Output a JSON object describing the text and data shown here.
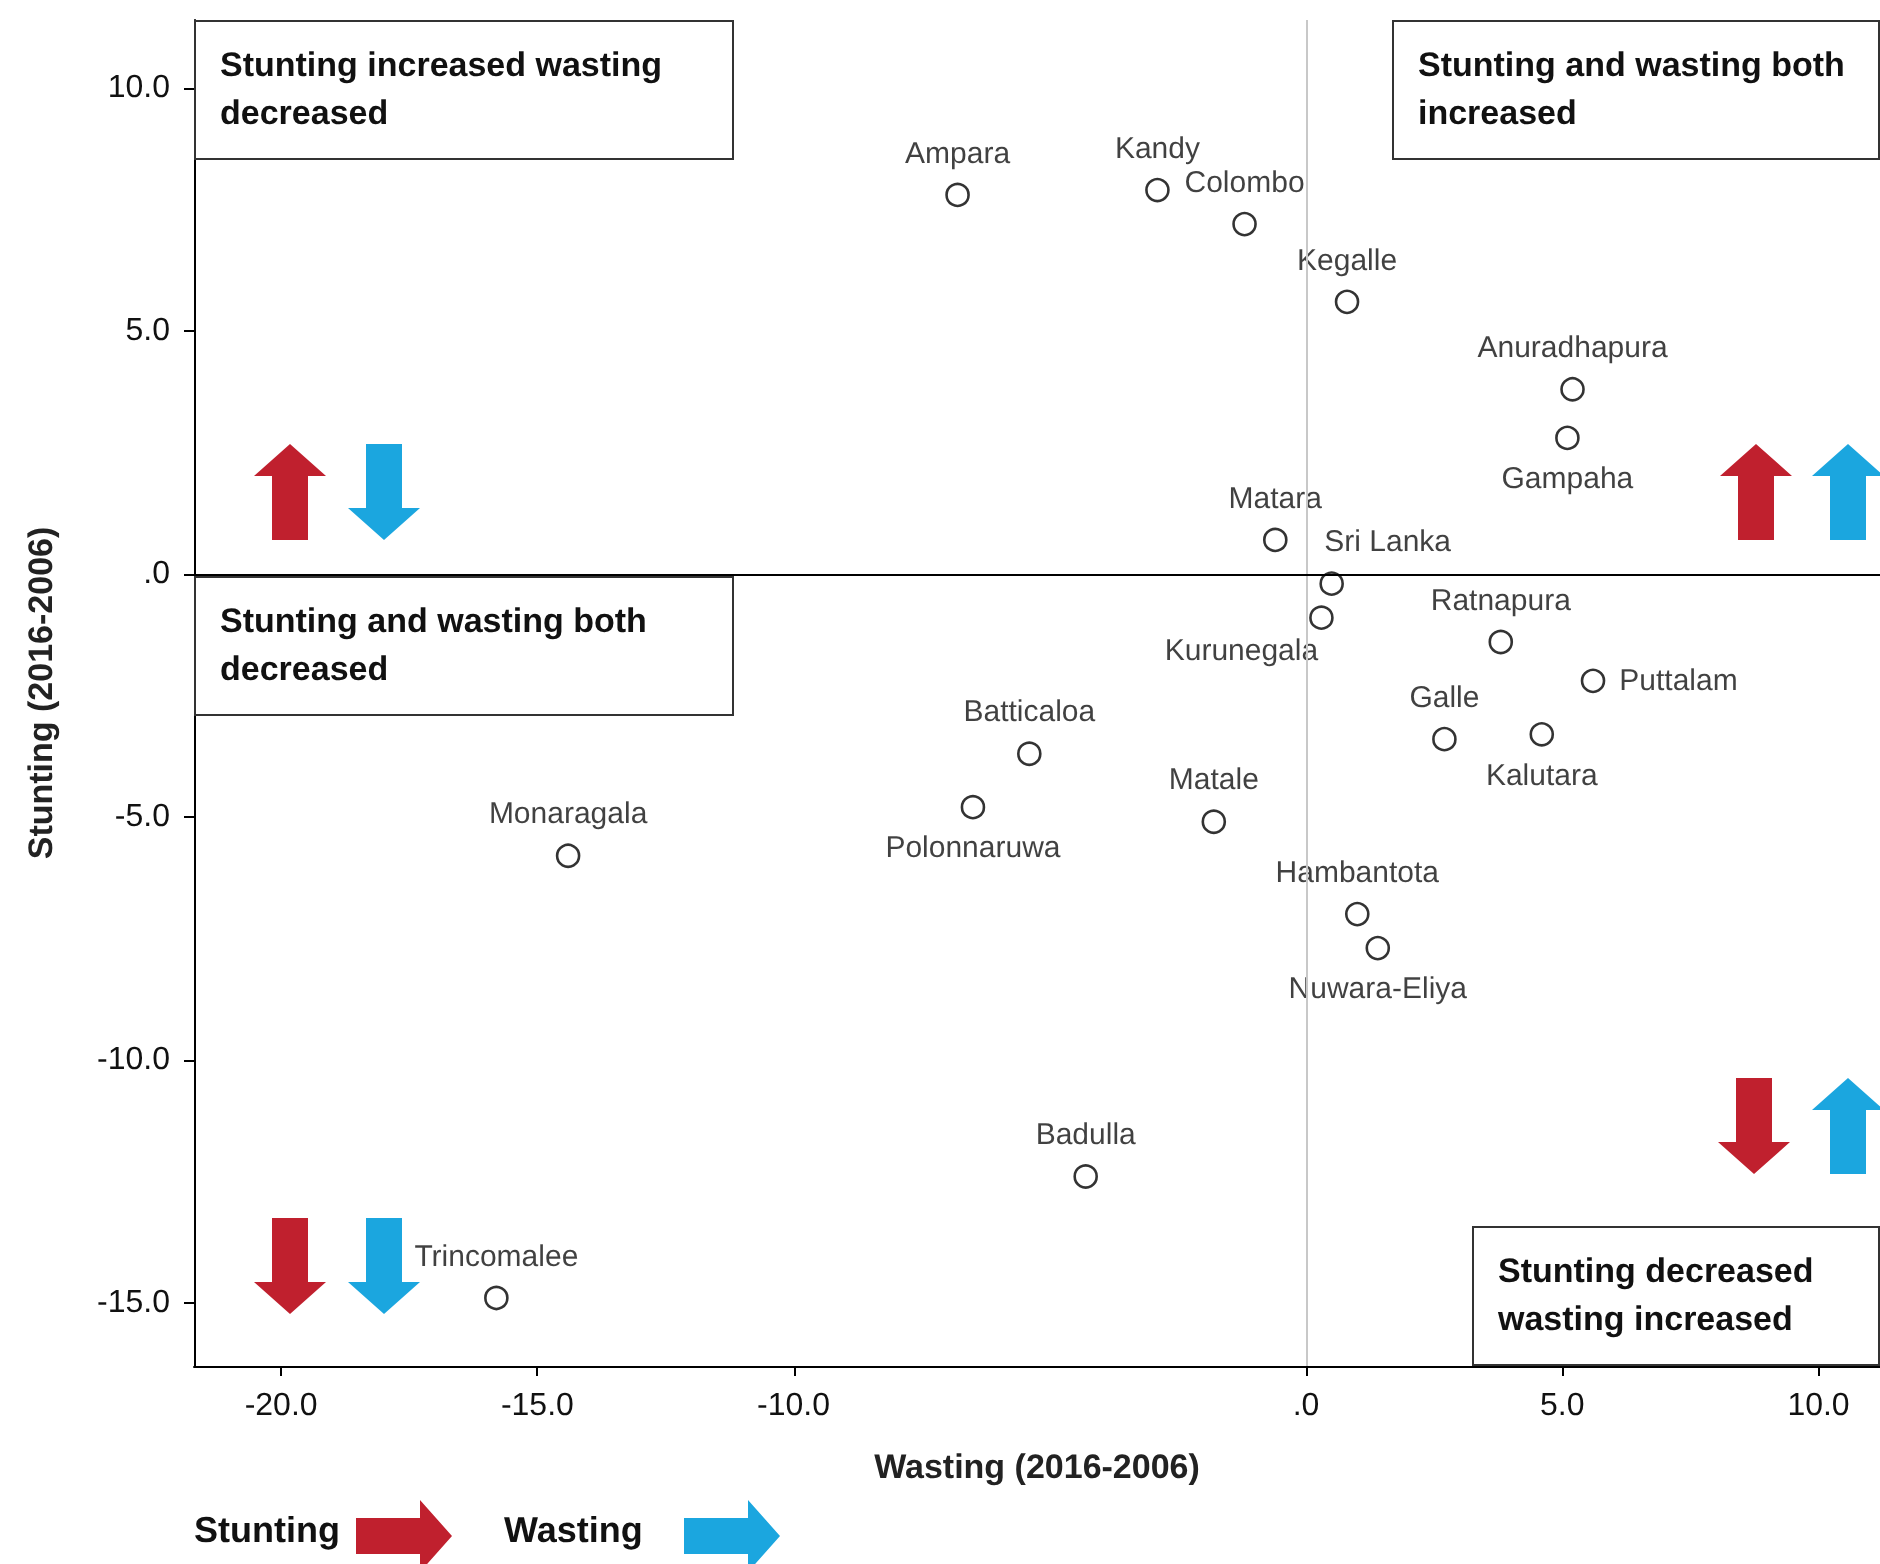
{
  "chart_data": {
    "type": "scatter",
    "xlabel": "Wasting (2016-2006)",
    "ylabel": "Stunting (2016-2006)",
    "xlim": [
      -21.7,
      11.2
    ],
    "ylim": [
      -16.3,
      11.4
    ],
    "xticks": [
      {
        "value": -20,
        "label": "-20.0"
      },
      {
        "value": -15,
        "label": "-15.0"
      },
      {
        "value": -10,
        "label": "-10.0"
      },
      {
        "value": 0,
        "label": ".0"
      },
      {
        "value": 5,
        "label": "5.0"
      },
      {
        "value": 10,
        "label": "10.0"
      }
    ],
    "yticks": [
      {
        "value": -15,
        "label": "-15.0"
      },
      {
        "value": -10,
        "label": "-10.0"
      },
      {
        "value": -5,
        "label": "-5.0"
      },
      {
        "value": 0,
        "label": ".0"
      },
      {
        "value": 5,
        "label": "5.0"
      },
      {
        "value": 10,
        "label": "10.0"
      }
    ],
    "grid": false,
    "legend": false,
    "marker": "circle",
    "ref_lines": [
      {
        "axis": "x",
        "value": 0,
        "color": "#c8c8c8"
      },
      {
        "axis": "y",
        "value": 0,
        "color": "#000000"
      }
    ],
    "annotations": [
      "Stunting increased wasting decreased",
      "Stunting and wasting both increased",
      "Stunting and wasting both decreased",
      "Stunting decreased wasting increased",
      "Stunting",
      "Wasting"
    ],
    "series": [
      {
        "name": "Ampara",
        "color": "#000000",
        "x": [
          -6.8
        ],
        "values": [
          7.8
        ]
      },
      {
        "name": "Kandy",
        "color": "#000000",
        "x": [
          -2.9
        ],
        "values": [
          7.9
        ]
      },
      {
        "name": "Colombo",
        "color": "#000000",
        "x": [
          -1.2
        ],
        "values": [
          7.2
        ]
      },
      {
        "name": "Kegalle",
        "color": "#000000",
        "x": [
          0.8
        ],
        "values": [
          5.6
        ]
      },
      {
        "name": "Anuradhapura",
        "color": "#000000",
        "x": [
          5.2
        ],
        "values": [
          3.8
        ]
      },
      {
        "name": "Gampaha",
        "color": "#000000",
        "x": [
          5.1
        ],
        "values": [
          2.8
        ]
      },
      {
        "name": "Matara",
        "color": "#000000",
        "x": [
          -0.6
        ],
        "values": [
          0.7
        ]
      },
      {
        "name": "Sri Lanka",
        "color": "#000000",
        "x": [
          0.5
        ],
        "values": [
          -0.2
        ]
      },
      {
        "name": "Kurunegala",
        "color": "#000000",
        "x": [
          0.3
        ],
        "values": [
          -0.9
        ]
      },
      {
        "name": "Ratnapura",
        "color": "#000000",
        "x": [
          3.8
        ],
        "values": [
          -1.4
        ]
      },
      {
        "name": "Puttalam",
        "color": "#000000",
        "x": [
          5.6
        ],
        "values": [
          -2.2
        ]
      },
      {
        "name": "Galle",
        "color": "#000000",
        "x": [
          2.7
        ],
        "values": [
          -3.4
        ]
      },
      {
        "name": "Kalutara",
        "color": "#000000",
        "x": [
          4.6
        ],
        "values": [
          -3.3
        ]
      },
      {
        "name": "Batticaloa",
        "color": "#000000",
        "x": [
          -5.4
        ],
        "values": [
          -3.7
        ]
      },
      {
        "name": "Polonnaruwa",
        "color": "#000000",
        "x": [
          -6.5
        ],
        "values": [
          -4.8
        ]
      },
      {
        "name": "Matale",
        "color": "#000000",
        "x": [
          -1.8
        ],
        "values": [
          -5.1
        ]
      },
      {
        "name": "Monaragala",
        "color": "#000000",
        "x": [
          -14.4
        ],
        "values": [
          -5.8
        ]
      },
      {
        "name": "Hambantota",
        "color": "#000000",
        "x": [
          1.0
        ],
        "values": [
          -7.0
        ]
      },
      {
        "name": "Nuwara-Eliya",
        "color": "#000000",
        "x": [
          1.4
        ],
        "values": [
          -7.7
        ]
      },
      {
        "name": "Badulla",
        "color": "#000000",
        "x": [
          -4.3
        ],
        "values": [
          -12.4
        ]
      },
      {
        "name": "Trincomalee",
        "color": "#000000",
        "x": [
          -15.8
        ],
        "values": [
          -14.9
        ]
      }
    ]
  }
}
